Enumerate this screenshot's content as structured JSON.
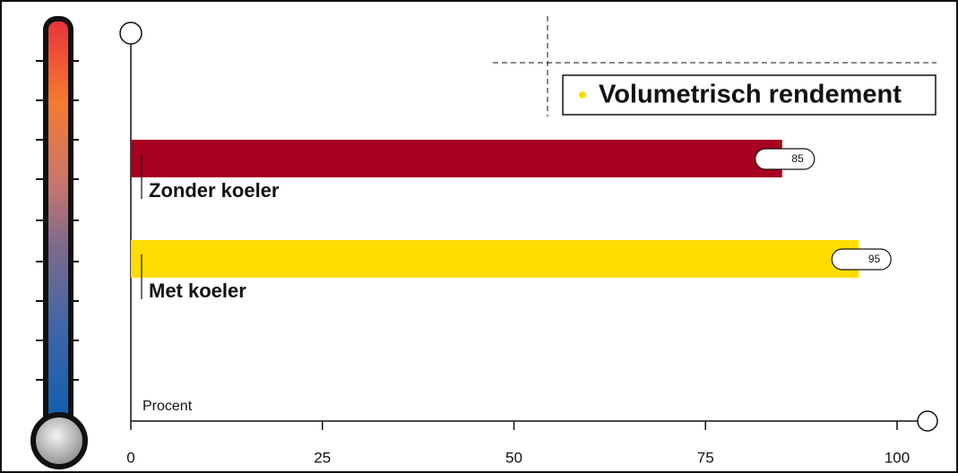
{
  "chart_data": {
    "type": "bar",
    "orientation": "horizontal",
    "title": "Volumetrisch rendement",
    "title_marker_color": "#ffdd00",
    "categories": [
      "Zonder koeler",
      "Met koeler"
    ],
    "values": [
      85,
      95
    ],
    "colors": [
      "#a8001f",
      "#ffdd00"
    ],
    "xlabel": "Procent",
    "xlim": [
      0,
      100
    ],
    "xticks": [
      0,
      25,
      50,
      75,
      100
    ],
    "grid": false
  }
}
